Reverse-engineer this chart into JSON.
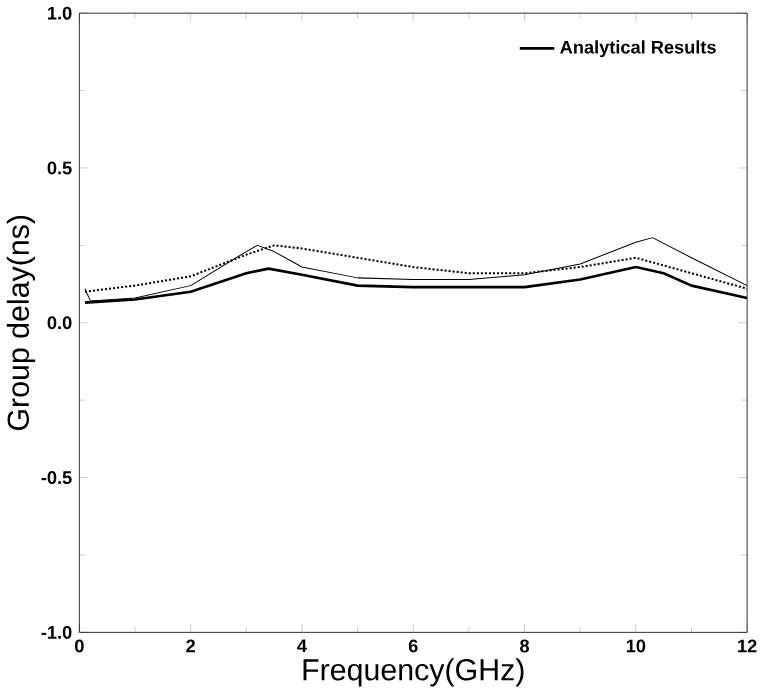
{
  "chart_data": {
    "type": "line",
    "xlabel": "Frequency(GHz)",
    "ylabel": "Group delay(ns)",
    "xlim": [
      0,
      12
    ],
    "ylim": [
      -1.0,
      1.0
    ],
    "xticks": [
      0,
      2,
      4,
      6,
      8,
      10,
      12
    ],
    "yticks": [
      {
        "value": -1.0,
        "label": "-1.0"
      },
      {
        "value": -0.5,
        "label": "-0.5"
      },
      {
        "value": 0.0,
        "label": "0.0"
      },
      {
        "value": 0.5,
        "label": "0.5"
      },
      {
        "value": 1.0,
        "label": "1.0"
      }
    ],
    "legend": "top right",
    "marker": "none",
    "series": [
      {
        "name": "Analytical Results",
        "color": "#000000",
        "line_style": "solid",
        "x": [
          0.1,
          1,
          2,
          3,
          3.4,
          4,
          5,
          6,
          7,
          8,
          9,
          10,
          10.5,
          11,
          12
        ],
        "values": [
          0.065,
          0.075,
          0.1,
          0.16,
          0.175,
          0.155,
          0.12,
          0.115,
          0.115,
          0.115,
          0.14,
          0.18,
          0.16,
          0.12,
          0.08
        ]
      },
      {
        "color": "#000000",
        "line_style": "solid",
        "x": [
          0.1,
          0.2,
          1,
          2,
          3,
          3.2,
          3.5,
          4,
          5,
          6,
          7,
          8,
          9,
          10,
          10.3,
          11,
          12
        ],
        "values": [
          0.11,
          0.07,
          0.08,
          0.12,
          0.23,
          0.25,
          0.23,
          0.18,
          0.145,
          0.14,
          0.14,
          0.155,
          0.19,
          0.26,
          0.275,
          0.21,
          0.12
        ]
      },
      {
        "color": "#000000",
        "line_style": "dotted",
        "x": [
          0.1,
          1,
          2,
          3,
          3.5,
          4,
          5,
          6,
          7,
          8,
          9,
          10,
          11,
          12
        ],
        "values": [
          0.1,
          0.12,
          0.15,
          0.22,
          0.25,
          0.24,
          0.21,
          0.18,
          0.16,
          0.16,
          0.18,
          0.21,
          0.16,
          0.11
        ]
      }
    ]
  }
}
